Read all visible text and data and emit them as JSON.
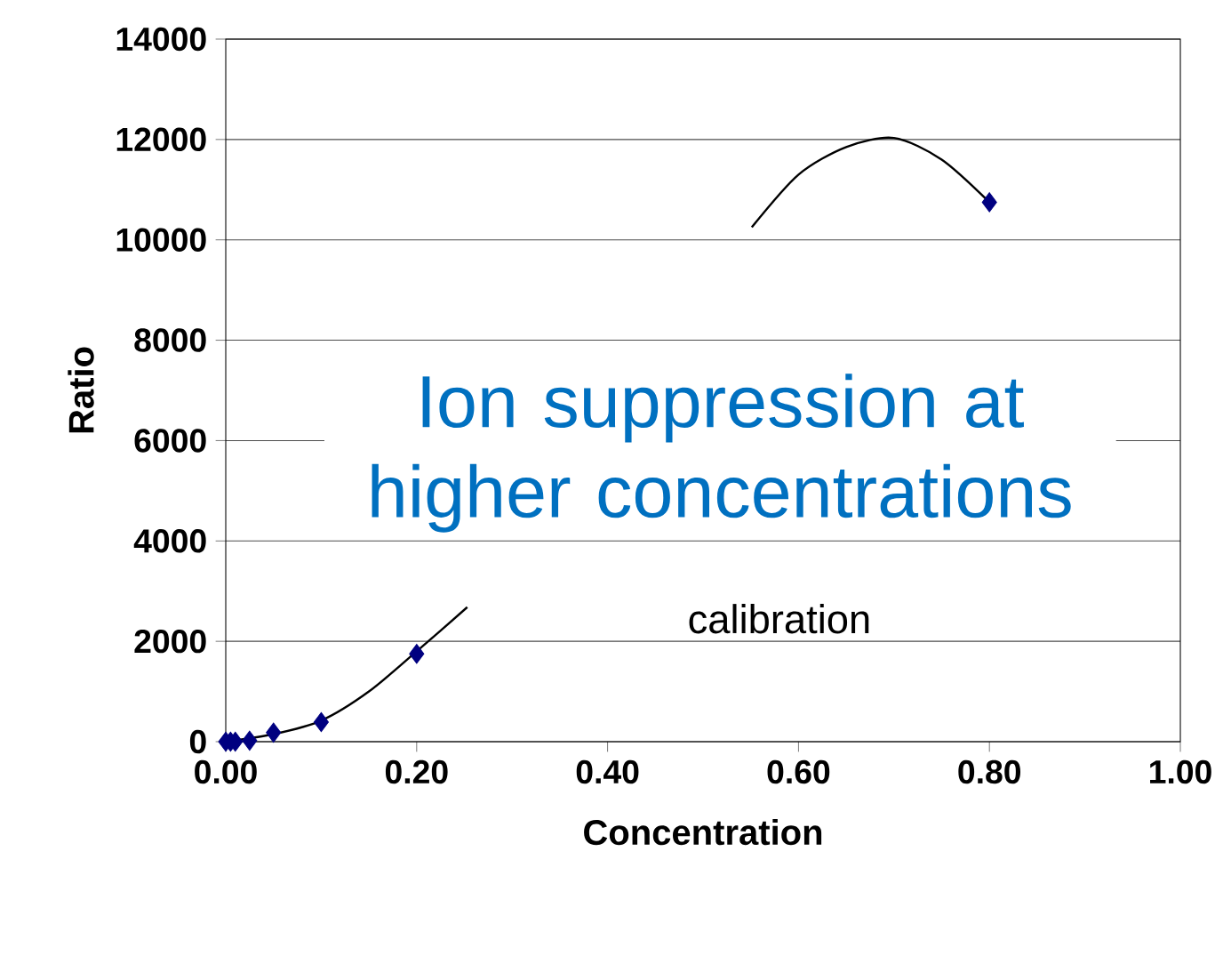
{
  "chart_data": {
    "type": "scatter",
    "xlabel": "Concentration",
    "ylabel": "Ratio",
    "xlim": [
      0,
      1
    ],
    "ylim": [
      0,
      14000
    ],
    "xticks": [
      {
        "value": 0,
        "label": "0.00"
      },
      {
        "value": 0.2,
        "label": "0.20"
      },
      {
        "value": 0.4,
        "label": "0.40"
      },
      {
        "value": 0.6,
        "label": "0.60"
      },
      {
        "value": 0.8,
        "label": "0.80"
      },
      {
        "value": 1,
        "label": "1.00"
      }
    ],
    "yticks": [
      0,
      2000,
      4000,
      6000,
      8000,
      10000,
      12000,
      14000
    ],
    "grid": "y",
    "marker": "diamond",
    "series": [
      {
        "color": "#000080",
        "x": [
          0,
          0.005,
          0.01,
          0.025,
          0.05,
          0.1,
          0.2,
          0.8
        ],
        "values": [
          0,
          0,
          0,
          20,
          180,
          390,
          1750,
          10750
        ]
      },
      {
        "type": "line",
        "marker": "none",
        "color": "#000000",
        "x": [
          0,
          0.05,
          0.1,
          0.15,
          0.2,
          0.253,
          0.4,
          0.551,
          0.6,
          0.65,
          0.7,
          0.75,
          0.8
        ],
        "values": [
          0,
          150,
          420,
          1000,
          1800,
          2680,
          null,
          10250,
          11300,
          11850,
          12030,
          11600,
          10750
        ]
      }
    ],
    "annotations": [
      "Ion suppression at higher concentrations",
      "calibration"
    ]
  }
}
